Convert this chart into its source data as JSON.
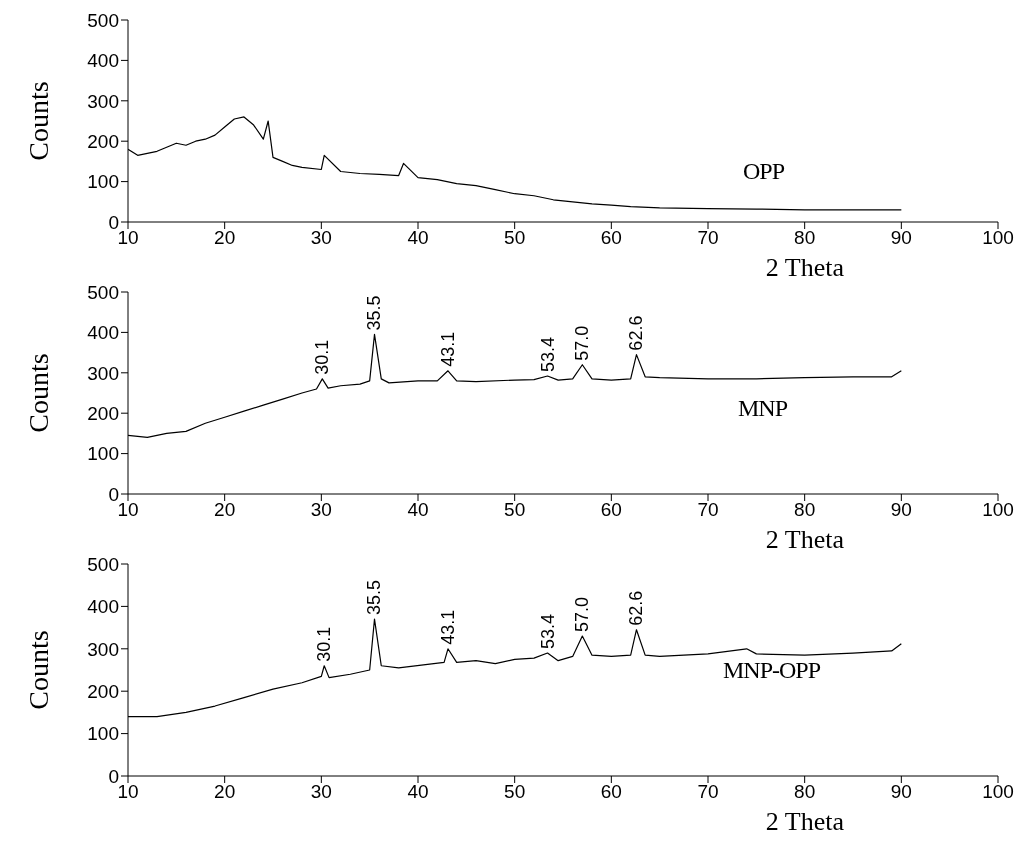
{
  "chart_data": [
    {
      "type": "line",
      "xlabel": "2 Theta",
      "ylabel": "Counts",
      "xlim": [
        10,
        100
      ],
      "xticks": [
        10,
        20,
        30,
        40,
        50,
        60,
        70,
        80,
        90,
        100
      ],
      "ylim": [
        0,
        500
      ],
      "yticks": [
        0,
        100,
        200,
        300,
        400,
        500
      ],
      "marker": "none",
      "x": [
        10,
        11,
        12,
        13,
        14,
        15,
        16,
        17,
        18,
        19,
        20,
        21,
        22,
        23,
        24,
        24.5,
        25,
        26,
        27,
        28,
        30,
        30.3,
        32,
        34,
        36,
        38,
        38.5,
        40,
        42,
        44,
        46,
        48,
        50,
        52,
        54,
        56,
        58,
        60,
        62,
        65,
        70,
        75,
        80,
        85,
        90
      ],
      "series": [
        {
          "name": "OPP",
          "color": "#000000",
          "values": [
            180,
            165,
            170,
            175,
            185,
            195,
            190,
            200,
            205,
            215,
            235,
            255,
            260,
            240,
            205,
            250,
            160,
            150,
            140,
            135,
            130,
            165,
            125,
            120,
            118,
            115,
            145,
            110,
            105,
            95,
            90,
            80,
            70,
            65,
            55,
            50,
            45,
            42,
            38,
            35,
            33,
            32,
            30,
            30,
            30
          ]
        }
      ]
    },
    {
      "type": "line",
      "xlabel": "2 Theta",
      "ylabel": "Counts",
      "xlim": [
        10,
        100
      ],
      "xticks": [
        10,
        20,
        30,
        40,
        50,
        60,
        70,
        80,
        90,
        100
      ],
      "ylim": [
        0,
        500
      ],
      "yticks": [
        0,
        100,
        200,
        300,
        400,
        500
      ],
      "marker": "none",
      "x": [
        10,
        12,
        14,
        16,
        18,
        20,
        22,
        24,
        26,
        28,
        29.5,
        30.1,
        30.7,
        32,
        34,
        35,
        35.5,
        36.2,
        37,
        40,
        42,
        43.1,
        44,
        46,
        50,
        52,
        53.4,
        54.5,
        56,
        57.0,
        58,
        60,
        62,
        62.6,
        63.5,
        65,
        70,
        75,
        80,
        85,
        89,
        90
      ],
      "series": [
        {
          "name": "MNP",
          "color": "#000000",
          "values": [
            145,
            140,
            150,
            155,
            175,
            190,
            205,
            220,
            235,
            250,
            260,
            285,
            262,
            268,
            272,
            280,
            395,
            285,
            275,
            280,
            280,
            305,
            280,
            278,
            282,
            283,
            292,
            282,
            285,
            320,
            285,
            282,
            285,
            345,
            290,
            288,
            285,
            285,
            288,
            290,
            290,
            305
          ]
        }
      ],
      "annotations": [
        {
          "text": "30.1",
          "x": 30.1,
          "y": 285
        },
        {
          "text": "35.5",
          "x": 35.5,
          "y": 395
        },
        {
          "text": "43.1",
          "x": 43.1,
          "y": 305
        },
        {
          "text": "53.4",
          "x": 53.4,
          "y": 292
        },
        {
          "text": "57.0",
          "x": 57.0,
          "y": 320
        },
        {
          "text": "62.6",
          "x": 62.6,
          "y": 345
        }
      ]
    },
    {
      "type": "line",
      "xlabel": "2 Theta",
      "ylabel": "Counts",
      "xlim": [
        10,
        100
      ],
      "xticks": [
        10,
        20,
        30,
        40,
        50,
        60,
        70,
        80,
        90,
        100
      ],
      "ylim": [
        0,
        500
      ],
      "yticks": [
        0,
        100,
        200,
        300,
        400,
        500
      ],
      "marker": "none",
      "x": [
        10,
        13,
        16,
        19,
        22,
        25,
        28,
        30,
        30.3,
        30.8,
        33,
        35,
        35.5,
        36.2,
        38,
        42.7,
        43.1,
        44,
        46,
        48,
        50,
        52,
        53.4,
        54.5,
        56,
        57.0,
        58,
        60,
        62,
        62.6,
        63.5,
        65,
        70,
        74,
        75,
        80,
        85,
        89,
        90
      ],
      "series": [
        {
          "name": "MNP-OPP",
          "color": "#000000",
          "values": [
            140,
            140,
            150,
            165,
            185,
            205,
            220,
            235,
            260,
            232,
            240,
            250,
            370,
            260,
            255,
            268,
            300,
            268,
            272,
            265,
            275,
            278,
            290,
            272,
            282,
            330,
            285,
            282,
            285,
            345,
            285,
            282,
            288,
            300,
            288,
            285,
            290,
            295,
            312
          ]
        }
      ],
      "annotations": [
        {
          "text": "30.1",
          "x": 30.3,
          "y": 260
        },
        {
          "text": "35.5",
          "x": 35.5,
          "y": 370
        },
        {
          "text": "43.1",
          "x": 43.1,
          "y": 300
        },
        {
          "text": "53.4",
          "x": 53.4,
          "y": 290
        },
        {
          "text": "57.0",
          "x": 57.0,
          "y": 330
        },
        {
          "text": "62.6",
          "x": 62.6,
          "y": 345
        }
      ]
    }
  ]
}
